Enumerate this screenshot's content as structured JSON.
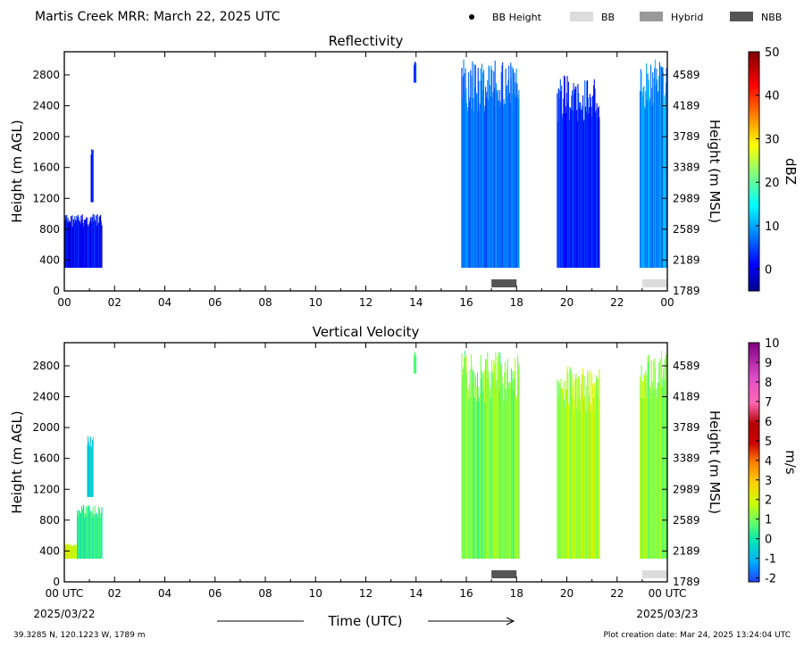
{
  "figure": {
    "title": "Martis Creek MRR:  March 22, 2025 UTC",
    "footer_left": "39.3285 N, 120.1223 W, 1789 m",
    "footer_right": "Plot creation date: Mar 24, 2025 13:24:04 UTC",
    "time_axis_label": "Time (UTC)",
    "date_start": "2025/03/22",
    "date_end": "2025/03/23"
  },
  "legend": {
    "placement": "top-right",
    "items": [
      {
        "name": "BB Height",
        "symbol": "dot",
        "color": "#000000"
      },
      {
        "name": "BB",
        "symbol": "box",
        "color": "#dcdcdc"
      },
      {
        "name": "Hybrid",
        "symbol": "box",
        "color": "#999999"
      },
      {
        "name": "NBB",
        "symbol": "box",
        "color": "#555555"
      }
    ]
  },
  "chart_data": [
    {
      "type": "heatmap",
      "title": "Reflectivity",
      "ylabel": "Height (m AGL)",
      "ylabel_right": "Height (m MSL)",
      "xlim": [
        0,
        24
      ],
      "ylim": [
        0,
        3100
      ],
      "x_ticks": [
        "00",
        "02",
        "04",
        "06",
        "08",
        "10",
        "12",
        "14",
        "16",
        "18",
        "20",
        "22",
        "00"
      ],
      "y_ticks": [
        0,
        400,
        800,
        1200,
        1600,
        2000,
        2400,
        2800
      ],
      "y_ticks_right": [
        "1789",
        "2189",
        "2589",
        "2989",
        "3389",
        "3789",
        "4189",
        "4589"
      ],
      "colorbar": {
        "label": "dBZ",
        "range": [
          -5,
          50
        ],
        "ticks": [
          "0",
          "10",
          "20",
          "30",
          "40",
          "50"
        ]
      },
      "grid": false,
      "echoes": [
        {
          "x0": 0.0,
          "x1": 1.5,
          "ytop": 1000,
          "ybot": 300,
          "value": 1
        },
        {
          "x0": 1.05,
          "x1": 1.15,
          "ytop": 1900,
          "ybot": 1150,
          "value": 1
        },
        {
          "x0": 13.9,
          "x1": 14.0,
          "ytop": 3000,
          "ybot": 2700,
          "value": 4
        },
        {
          "x0": 15.8,
          "x1": 18.1,
          "ytop": 3000,
          "ybot": 300,
          "value": 7
        },
        {
          "x0": 19.6,
          "x1": 21.3,
          "ytop": 2800,
          "ybot": 300,
          "value": 3
        },
        {
          "x0": 22.9,
          "x1": 24.0,
          "ytop": 3000,
          "ybot": 300,
          "value": 9
        }
      ],
      "bright_band": [
        {
          "x0": 17.0,
          "x1": 18.0,
          "kind": "NBB"
        },
        {
          "x0": 23.0,
          "x1": 24.0,
          "kind": "BB"
        }
      ]
    },
    {
      "type": "heatmap",
      "title": "Vertical Velocity",
      "ylabel": "Height (m AGL)",
      "ylabel_right": "Height (m MSL)",
      "xlim": [
        0,
        24
      ],
      "ylim": [
        0,
        3100
      ],
      "x_ticks": [
        "00 UTC",
        "02",
        "04",
        "06",
        "08",
        "10",
        "12",
        "14",
        "16",
        "18",
        "20",
        "22",
        "00 UTC"
      ],
      "y_ticks": [
        0,
        400,
        800,
        1200,
        1600,
        2000,
        2400,
        2800
      ],
      "y_ticks_right": [
        "1789",
        "2189",
        "2589",
        "2989",
        "3389",
        "3789",
        "4189",
        "4589"
      ],
      "colorbar": {
        "label": "m/s",
        "range": [
          -2.2,
          10
        ],
        "ticks": [
          "-2",
          "-1",
          "0",
          "1",
          "2",
          "3",
          "4",
          "5",
          "6",
          "7",
          "8",
          "9",
          "10"
        ]
      },
      "grid": false,
      "echoes": [
        {
          "x0": 0.0,
          "x1": 0.5,
          "ytop": 500,
          "ybot": 300,
          "value": 2
        },
        {
          "x0": 0.5,
          "x1": 1.5,
          "ytop": 1000,
          "ybot": 300,
          "value": 0.2
        },
        {
          "x0": 0.9,
          "x1": 1.15,
          "ytop": 1900,
          "ybot": 1100,
          "value": -0.4
        },
        {
          "x0": 13.9,
          "x1": 14.0,
          "ytop": 3000,
          "ybot": 2700,
          "value": 0.8
        },
        {
          "x0": 15.8,
          "x1": 18.1,
          "ytop": 3000,
          "ybot": 300,
          "value": 1
        },
        {
          "x0": 19.6,
          "x1": 21.3,
          "ytop": 2800,
          "ybot": 300,
          "value": 1.5
        },
        {
          "x0": 22.9,
          "x1": 24.0,
          "ytop": 3000,
          "ybot": 300,
          "value": 1.2
        }
      ],
      "bright_band": [
        {
          "x0": 17.0,
          "x1": 18.0,
          "kind": "NBB"
        },
        {
          "x0": 23.0,
          "x1": 24.0,
          "kind": "BB"
        }
      ]
    }
  ]
}
